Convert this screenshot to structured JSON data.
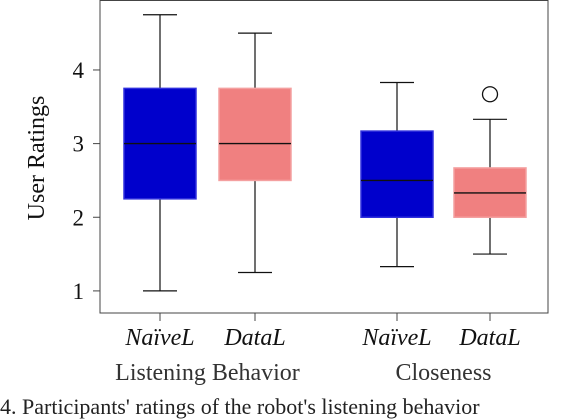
{
  "chart_data": {
    "type": "boxplot",
    "ylabel": "User Ratings",
    "ylim": [
      0.7,
      4.95
    ],
    "yticks": [
      1,
      2,
      3,
      4
    ],
    "categories": [
      "NaïveL",
      "DataL",
      "NaïveL",
      "DataL"
    ],
    "groups": [
      {
        "label": "Listening Behavior",
        "categories": [
          0,
          1
        ]
      },
      {
        "label": "Closeness",
        "categories": [
          2,
          3
        ]
      }
    ],
    "boxes": [
      {
        "category": "NaïveL",
        "group": "Listening Behavior",
        "min": 1.0,
        "q1": 2.25,
        "median": 3.0,
        "q3": 3.75,
        "max": 4.75,
        "outliers": [],
        "color": "#0000cc"
      },
      {
        "category": "DataL",
        "group": "Listening Behavior",
        "min": 1.25,
        "q1": 2.5,
        "median": 3.0,
        "q3": 3.75,
        "max": 4.5,
        "outliers": [],
        "color": "#f08080"
      },
      {
        "category": "NaïveL",
        "group": "Closeness",
        "min": 1.33,
        "q1": 2.0,
        "median": 2.5,
        "q3": 3.17,
        "max": 3.83,
        "outliers": [],
        "color": "#0000cc"
      },
      {
        "category": "DataL",
        "group": "Closeness",
        "min": 1.5,
        "q1": 2.0,
        "median": 2.33,
        "q3": 2.67,
        "max": 3.33,
        "outliers": [
          3.67
        ],
        "color": "#f08080"
      }
    ],
    "grid": false,
    "legend": "none"
  },
  "caption": "4.  Participants' ratings of the robot's listening behavior"
}
